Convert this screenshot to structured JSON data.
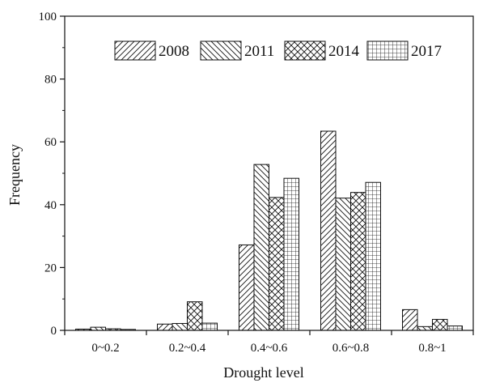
{
  "chart_data": {
    "type": "bar",
    "title": "",
    "xlabel": "Drought level",
    "ylabel": "Frequency",
    "ylim": [
      0,
      100
    ],
    "yticks": [
      0,
      20,
      40,
      60,
      80,
      100
    ],
    "categories": [
      "0~0.2",
      "0.2~0.4",
      "0.4~0.6",
      "0.6~0.8",
      "0.8~1"
    ],
    "series": [
      {
        "name": "2008",
        "pattern": "diagonal-up",
        "values": [
          0.4,
          2.0,
          27.2,
          63.4,
          6.6
        ]
      },
      {
        "name": "2011",
        "pattern": "diagonal-down",
        "values": [
          1.0,
          2.2,
          52.8,
          42.1,
          1.2
        ]
      },
      {
        "name": "2014",
        "pattern": "crosshatch",
        "values": [
          0.5,
          9.1,
          42.3,
          43.9,
          3.5
        ]
      },
      {
        "name": "2017",
        "pattern": "grid",
        "values": [
          0.3,
          2.3,
          48.4,
          47.1,
          1.4
        ]
      }
    ],
    "legend_position": "top",
    "grid": false
  },
  "colors": {
    "stroke": "#111111",
    "fill": "#ffffff"
  }
}
